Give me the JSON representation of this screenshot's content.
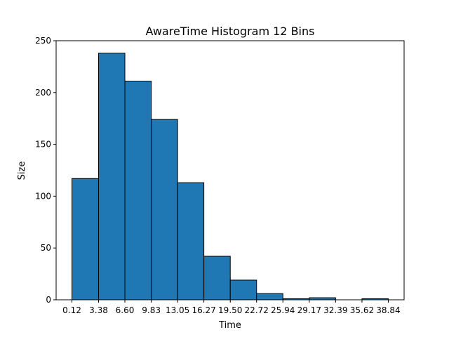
{
  "chart_data": {
    "type": "bar",
    "title": "AwareTime Histogram 12 Bins",
    "xlabel": "Time",
    "ylabel": "Size",
    "bin_edges": [
      0.12,
      3.38,
      6.6,
      9.83,
      13.05,
      16.27,
      19.5,
      22.72,
      25.94,
      29.17,
      32.39,
      35.62,
      38.84
    ],
    "x_tick_labels": [
      "0.12",
      "3.38",
      "6.60",
      "9.83",
      "13.05",
      "16.27",
      "19.50",
      "22.72",
      "25.94",
      "29.17",
      "32.39",
      "35.62",
      "38.84"
    ],
    "values": [
      117,
      238,
      211,
      174,
      113,
      42,
      19,
      6,
      1,
      2,
      0,
      1
    ],
    "ylim": [
      0,
      250
    ],
    "y_ticks": [
      0,
      50,
      100,
      150,
      200,
      250
    ],
    "bar_color": "#1f77b4",
    "edge_color": "#000000",
    "grid": false
  }
}
